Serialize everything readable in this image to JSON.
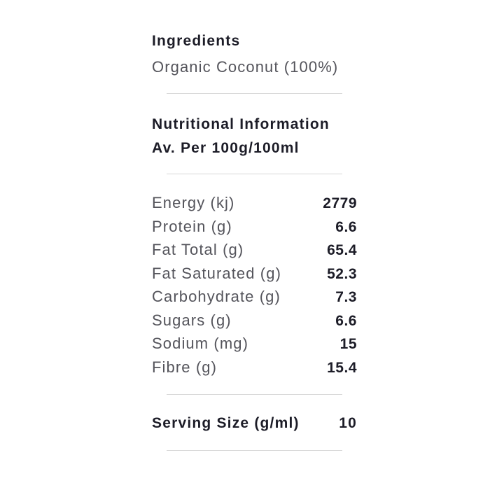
{
  "colors": {
    "background": "#ffffff",
    "heading_text": "#1c1c27",
    "label_text": "#54545b",
    "divider": "#d7d7d7"
  },
  "ingredients": {
    "title": "Ingredients",
    "value": "Organic Coconut (100%)"
  },
  "nutrition": {
    "title": "Nutritional Information",
    "subtitle": "Av. Per 100g/100ml",
    "rows": [
      {
        "label": "Energy (kj)",
        "value": "2779"
      },
      {
        "label": "Protein (g)",
        "value": "6.6"
      },
      {
        "label": "Fat Total (g)",
        "value": "65.4"
      },
      {
        "label": "Fat Saturated (g)",
        "value": "52.3"
      },
      {
        "label": "Carbohydrate (g)",
        "value": "7.3"
      },
      {
        "label": "Sugars (g)",
        "value": "6.6"
      },
      {
        "label": "Sodium (mg)",
        "value": "15"
      },
      {
        "label": "Fibre (g)",
        "value": "15.4"
      }
    ]
  },
  "serving": {
    "label": "Serving Size (g/ml)",
    "value": "10"
  }
}
